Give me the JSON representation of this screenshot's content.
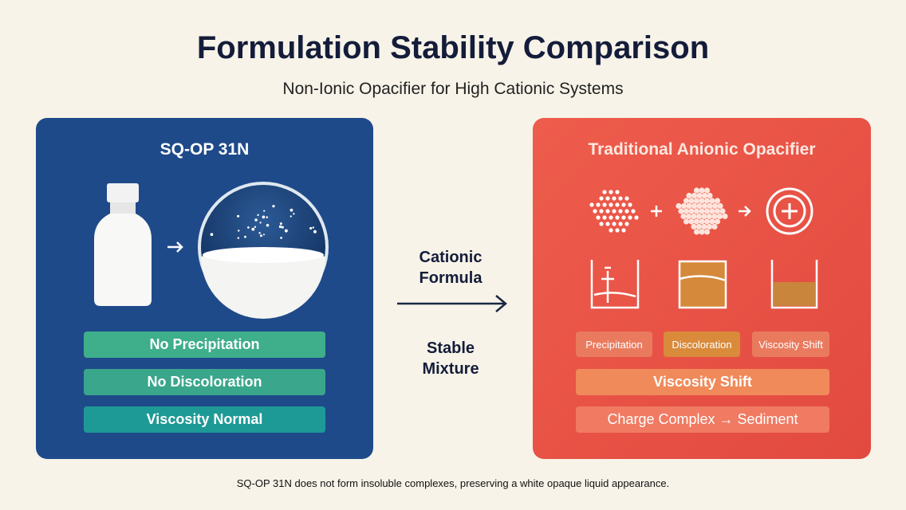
{
  "header": {
    "title": "Formulation Stability Comparison",
    "subtitle": "Non-Ionic Opacifier for High Cationic Systems"
  },
  "left_panel": {
    "title": "SQ-OP 31N",
    "badges": [
      "No Precipitation",
      "No Discoloration",
      "Viscosity Normal"
    ]
  },
  "middle": {
    "top": "Cationic Formula",
    "bottom": "Stable Mixture"
  },
  "right_panel": {
    "title": "Traditional Anionic Opacifier",
    "tags": [
      "Precipitation",
      "Discoloration",
      "Viscosity Shift"
    ],
    "badges": [
      "Viscosity Shift",
      "Charge Complex → Sediment"
    ]
  },
  "footer": "SQ-OP 31N does not form insoluble complexes, preserving a white opaque liquid appearance."
}
